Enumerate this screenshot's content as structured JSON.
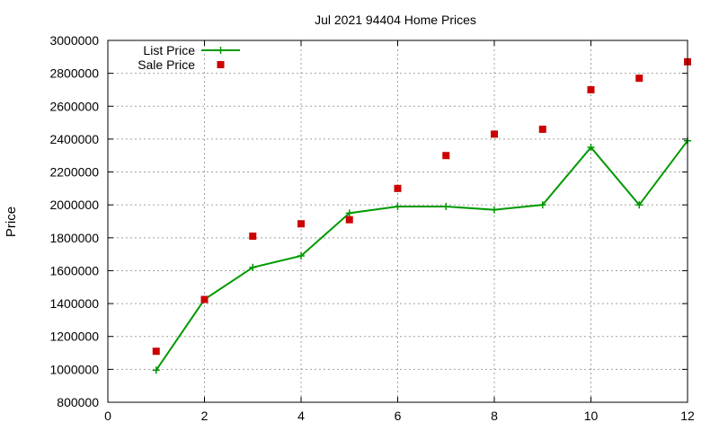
{
  "chart_data": {
    "type": "line",
    "title": "Jul 2021 94404 Home Prices",
    "xlabel": "",
    "ylabel": "Price",
    "xlim": [
      0,
      12
    ],
    "ylim": [
      800000,
      3000000
    ],
    "xticks": [
      0,
      2,
      4,
      6,
      8,
      10,
      12
    ],
    "yticks": [
      800000,
      1000000,
      1200000,
      1400000,
      1600000,
      1800000,
      2000000,
      2200000,
      2400000,
      2600000,
      2800000,
      3000000
    ],
    "grid": true,
    "legend_position": "top-left",
    "series": [
      {
        "name": "List Price",
        "style": "line-with-plus-markers",
        "color": "#009900",
        "x": [
          1,
          2,
          3,
          4,
          5,
          6,
          7,
          8,
          9,
          10,
          11,
          12
        ],
        "values": [
          995000,
          1425000,
          1620000,
          1690000,
          1950000,
          1990000,
          1990000,
          1970000,
          2000000,
          2350000,
          2000000,
          2390000
        ]
      },
      {
        "name": "Sale Price",
        "style": "square-markers",
        "color": "#cc0000",
        "x": [
          1,
          2,
          3,
          4,
          5,
          6,
          7,
          8,
          9,
          10,
          11,
          12
        ],
        "values": [
          1110000,
          1425000,
          1810000,
          1885000,
          1910000,
          2100000,
          2300000,
          2430000,
          2460000,
          2700000,
          2770000,
          2870000
        ]
      }
    ]
  }
}
